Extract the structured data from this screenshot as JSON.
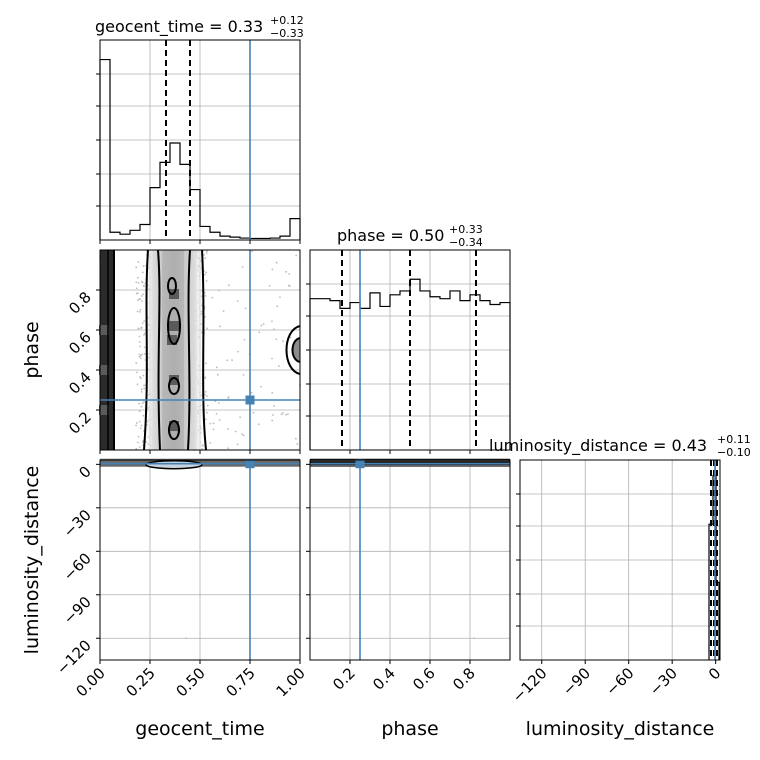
{
  "chart_data": {
    "type": "corner",
    "parameters": [
      {
        "label": "geocent_time",
        "title_name": "geocent_time",
        "title_median": "0.33",
        "title_plus": "+0.12",
        "title_minus": "−0.33",
        "range": [
          0,
          1
        ],
        "ticks": [
          0.0,
          0.25,
          0.5,
          0.75,
          1.0
        ],
        "tick_labels": [
          "0.00",
          "0.25",
          "0.50",
          "0.75",
          "1.00"
        ],
        "truth": 0.75,
        "quantiles": [
          0.33,
          0.45
        ],
        "histogram": {
          "bin_edges": [
            0,
            0.05,
            0.1,
            0.15,
            0.2,
            0.25,
            0.3,
            0.35,
            0.4,
            0.45,
            0.5,
            0.55,
            0.6,
            0.65,
            0.7,
            0.75,
            0.8,
            0.85,
            0.9,
            0.95,
            1.0
          ],
          "counts": [
            0.93,
            0.04,
            0.03,
            0.05,
            0.08,
            0.27,
            0.4,
            0.5,
            0.39,
            0.26,
            0.07,
            0.04,
            0.02,
            0.015,
            0.01,
            0.008,
            0.008,
            0.01,
            0.02,
            0.11
          ],
          "ymax": 1.0
        }
      },
      {
        "label": "phase",
        "title_name": "phase",
        "title_median": "0.50",
        "title_plus": "+0.33",
        "title_minus": "−0.34",
        "range": [
          0,
          1
        ],
        "ticks": [
          0.2,
          0.4,
          0.6,
          0.8
        ],
        "tick_labels": [
          "0.2",
          "0.4",
          "0.6",
          "0.8"
        ],
        "truth": 0.25,
        "quantiles": [
          0.16,
          0.5,
          0.83
        ],
        "histogram": {
          "bin_edges": [
            0,
            0.05,
            0.1,
            0.15,
            0.2,
            0.25,
            0.3,
            0.35,
            0.4,
            0.45,
            0.5,
            0.55,
            0.6,
            0.65,
            0.7,
            0.75,
            0.8,
            0.85,
            0.9,
            0.95,
            1.0
          ],
          "counts": [
            0.78,
            0.78,
            0.77,
            0.73,
            0.76,
            0.73,
            0.81,
            0.74,
            0.8,
            0.82,
            0.88,
            0.82,
            0.79,
            0.78,
            0.82,
            0.77,
            0.8,
            0.77,
            0.75,
            0.76
          ],
          "ymax": 1.0
        }
      },
      {
        "label": "luminosity_distance",
        "title_name": "luminosity_distance",
        "title_median": "0.43",
        "title_plus": "+0.11",
        "title_minus": "−0.10",
        "range": [
          -135,
          3
        ],
        "ticks": [
          -120,
          -90,
          -60,
          -30,
          0
        ],
        "tick_labels": [
          "−120",
          "−90",
          "−60",
          "−30",
          "0"
        ],
        "truth": 0.43,
        "quantiles": [
          0.33,
          0.43,
          0.54
        ],
        "histogram": {
          "bin_edges": [
            -0.5,
            0.0,
            0.5,
            1.0
          ],
          "counts": [
            0.7,
            0.95,
            0.4
          ],
          "ymax": 1.0
        }
      }
    ],
    "pairs": [
      {
        "x": "geocent_time",
        "y": "phase",
        "truth": [
          0.75,
          0.25
        ],
        "density_note": "dense band at geocent_time 0.20–0.50 and near 0.00; contour lobe at 0.98, phase 0.50"
      },
      {
        "x": "geocent_time",
        "y": "luminosity_distance",
        "truth": [
          0.75,
          0.43
        ]
      },
      {
        "x": "phase",
        "y": "luminosity_distance",
        "truth": [
          0.25,
          0.43
        ]
      }
    ],
    "grid": true
  },
  "colors": {
    "truth": "#4682b4",
    "contour": "#000000",
    "scatter": "#bbbbbb"
  }
}
